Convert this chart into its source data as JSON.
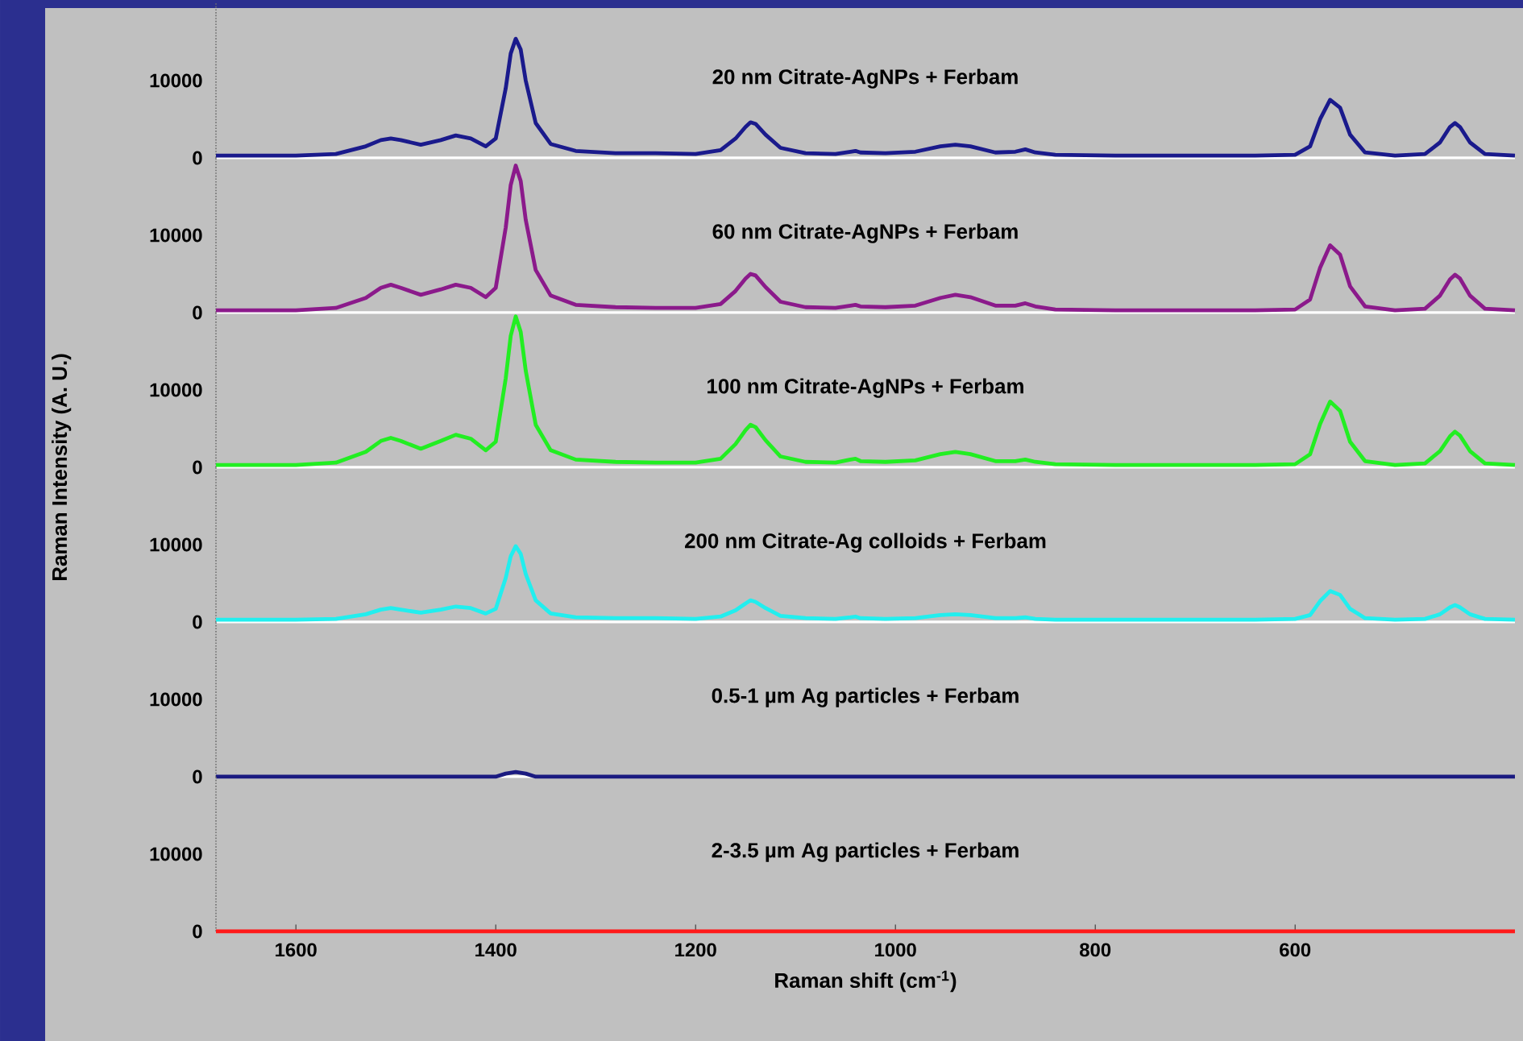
{
  "chart_data": [
    {
      "type": "line",
      "title": "20 nm Citrate-AgNPs + Ferbam",
      "xlim": [
        1680,
        380
      ],
      "ylim": [
        0,
        20000
      ],
      "yticks": [
        0,
        10000
      ],
      "tick_labels": "y",
      "series": [
        {
          "color": "#1a1a8c",
          "x": [
            1680,
            1600,
            1560,
            1530,
            1515,
            1505,
            1495,
            1475,
            1455,
            1440,
            1425,
            1410,
            1400,
            1390,
            1385,
            1380,
            1375,
            1370,
            1360,
            1345,
            1320,
            1280,
            1240,
            1200,
            1175,
            1160,
            1150,
            1145,
            1140,
            1130,
            1115,
            1090,
            1060,
            1045,
            1040,
            1035,
            1010,
            980,
            955,
            940,
            925,
            900,
            880,
            870,
            860,
            840,
            780,
            700,
            640,
            600,
            585,
            575,
            565,
            555,
            545,
            530,
            500,
            470,
            455,
            445,
            440,
            435,
            425,
            410,
            380
          ],
          "values": [
            300,
            300,
            500,
            1500,
            2300,
            2500,
            2300,
            1700,
            2300,
            2900,
            2500,
            1500,
            2500,
            9000,
            13500,
            15400,
            14000,
            10000,
            4500,
            1800,
            900,
            600,
            600,
            500,
            1000,
            2500,
            4000,
            4600,
            4400,
            3000,
            1300,
            600,
            500,
            800,
            900,
            700,
            600,
            800,
            1500,
            1700,
            1500,
            700,
            800,
            1100,
            700,
            400,
            300,
            300,
            300,
            400,
            1500,
            5000,
            7500,
            6500,
            3000,
            700,
            300,
            500,
            2000,
            4000,
            4500,
            4000,
            2000,
            500,
            300
          ]
        }
      ]
    },
    {
      "type": "line",
      "title": "60 nm Citrate-AgNPs + Ferbam",
      "xlim": [
        1680,
        380
      ],
      "ylim": [
        0,
        20000
      ],
      "yticks": [
        0,
        10000
      ],
      "tick_labels": "y",
      "series": [
        {
          "color": "#8b1a8b",
          "x": [
            1680,
            1600,
            1560,
            1530,
            1515,
            1505,
            1495,
            1475,
            1455,
            1440,
            1425,
            1410,
            1400,
            1390,
            1385,
            1380,
            1375,
            1370,
            1360,
            1345,
            1320,
            1280,
            1240,
            1200,
            1175,
            1160,
            1150,
            1145,
            1140,
            1130,
            1115,
            1090,
            1060,
            1045,
            1040,
            1035,
            1010,
            980,
            955,
            940,
            925,
            900,
            880,
            870,
            860,
            840,
            780,
            700,
            640,
            600,
            585,
            575,
            565,
            555,
            545,
            530,
            500,
            470,
            455,
            445,
            440,
            435,
            425,
            410,
            380
          ],
          "values": [
            300,
            300,
            600,
            1900,
            3200,
            3600,
            3200,
            2300,
            3000,
            3600,
            3200,
            2000,
            3200,
            11000,
            16500,
            19000,
            17000,
            12000,
            5500,
            2200,
            1000,
            700,
            600,
            600,
            1100,
            2800,
            4400,
            5000,
            4800,
            3300,
            1400,
            700,
            600,
            900,
            1000,
            800,
            700,
            900,
            1900,
            2300,
            2000,
            900,
            900,
            1200,
            800,
            400,
            300,
            300,
            300,
            400,
            1700,
            5800,
            8700,
            7500,
            3400,
            800,
            300,
            500,
            2200,
            4300,
            4900,
            4400,
            2200,
            500,
            300
          ]
        }
      ]
    },
    {
      "type": "line",
      "title": "100 nm Citrate-AgNPs + Ferbam",
      "ylabel": "Raman Intensity (A. U.)",
      "xlim": [
        1680,
        380
      ],
      "ylim": [
        0,
        20000
      ],
      "yticks": [
        0,
        10000
      ],
      "tick_labels": "y",
      "series": [
        {
          "color": "#22ee22",
          "x": [
            1680,
            1600,
            1560,
            1530,
            1515,
            1505,
            1495,
            1475,
            1455,
            1440,
            1425,
            1410,
            1400,
            1390,
            1385,
            1380,
            1375,
            1370,
            1360,
            1345,
            1320,
            1280,
            1240,
            1200,
            1175,
            1160,
            1150,
            1145,
            1140,
            1130,
            1115,
            1090,
            1060,
            1045,
            1040,
            1035,
            1010,
            980,
            955,
            940,
            925,
            900,
            880,
            870,
            860,
            840,
            780,
            700,
            640,
            600,
            585,
            575,
            565,
            555,
            545,
            530,
            500,
            470,
            455,
            445,
            440,
            435,
            425,
            410,
            380
          ],
          "values": [
            300,
            300,
            600,
            2000,
            3400,
            3800,
            3400,
            2400,
            3400,
            4200,
            3700,
            2200,
            3300,
            11500,
            17000,
            19500,
            17500,
            12500,
            5500,
            2200,
            1000,
            700,
            600,
            600,
            1100,
            3000,
            4800,
            5500,
            5200,
            3500,
            1400,
            700,
            600,
            1000,
            1100,
            800,
            700,
            900,
            1700,
            2000,
            1700,
            800,
            800,
            1000,
            700,
            400,
            300,
            300,
            300,
            400,
            1700,
            5600,
            8500,
            7300,
            3300,
            800,
            300,
            500,
            2100,
            4000,
            4600,
            4100,
            2100,
            500,
            300
          ]
        }
      ]
    },
    {
      "type": "line",
      "title": "200 nm Citrate-Ag colloids + Ferbam",
      "xlim": [
        1680,
        380
      ],
      "ylim": [
        0,
        20000
      ],
      "yticks": [
        0,
        10000
      ],
      "tick_labels": "y",
      "series": [
        {
          "color": "#22eeee",
          "x": [
            1680,
            1600,
            1560,
            1530,
            1515,
            1505,
            1495,
            1475,
            1455,
            1440,
            1425,
            1410,
            1400,
            1390,
            1385,
            1380,
            1375,
            1370,
            1360,
            1345,
            1320,
            1280,
            1240,
            1200,
            1175,
            1160,
            1150,
            1145,
            1140,
            1130,
            1115,
            1090,
            1060,
            1045,
            1040,
            1035,
            1010,
            980,
            955,
            940,
            925,
            900,
            880,
            870,
            860,
            840,
            780,
            700,
            640,
            600,
            585,
            575,
            565,
            555,
            545,
            530,
            500,
            470,
            455,
            445,
            440,
            435,
            425,
            410,
            380
          ],
          "values": [
            300,
            300,
            400,
            1000,
            1600,
            1800,
            1600,
            1200,
            1600,
            2000,
            1800,
            1100,
            1700,
            5700,
            8500,
            9800,
            8800,
            6200,
            2800,
            1100,
            600,
            500,
            500,
            400,
            700,
            1500,
            2400,
            2800,
            2600,
            1800,
            800,
            500,
            400,
            600,
            700,
            500,
            400,
            500,
            900,
            1000,
            900,
            500,
            500,
            600,
            400,
            300,
            300,
            300,
            300,
            400,
            900,
            2700,
            4000,
            3500,
            1700,
            500,
            300,
            400,
            1000,
            1900,
            2200,
            1900,
            1000,
            400,
            300
          ]
        }
      ]
    },
    {
      "type": "line",
      "title": "0.5-1 µm Ag particles + Ferbam",
      "xlim": [
        1680,
        380
      ],
      "ylim": [
        0,
        20000
      ],
      "yticks": [
        0,
        10000
      ],
      "tick_labels": "y",
      "series": [
        {
          "color": "#1a1a80",
          "x": [
            1680,
            1400,
            1390,
            1380,
            1370,
            1360,
            380
          ],
          "values": [
            0,
            0,
            400,
            600,
            400,
            0,
            0
          ]
        }
      ]
    },
    {
      "type": "line",
      "title": "2-3.5 µm Ag particles + Ferbam",
      "xlabel": "Raman shift (cm$^{-1}$)",
      "xlim": [
        1680,
        380
      ],
      "ylim": [
        0,
        20000
      ],
      "yticks": [
        0,
        10000
      ],
      "xticks": [
        1600,
        1400,
        1200,
        1000,
        800,
        600
      ],
      "series": [
        {
          "color": "#ff1a1a",
          "x": [
            1680,
            380
          ],
          "values": [
            0,
            0
          ]
        }
      ]
    }
  ]
}
